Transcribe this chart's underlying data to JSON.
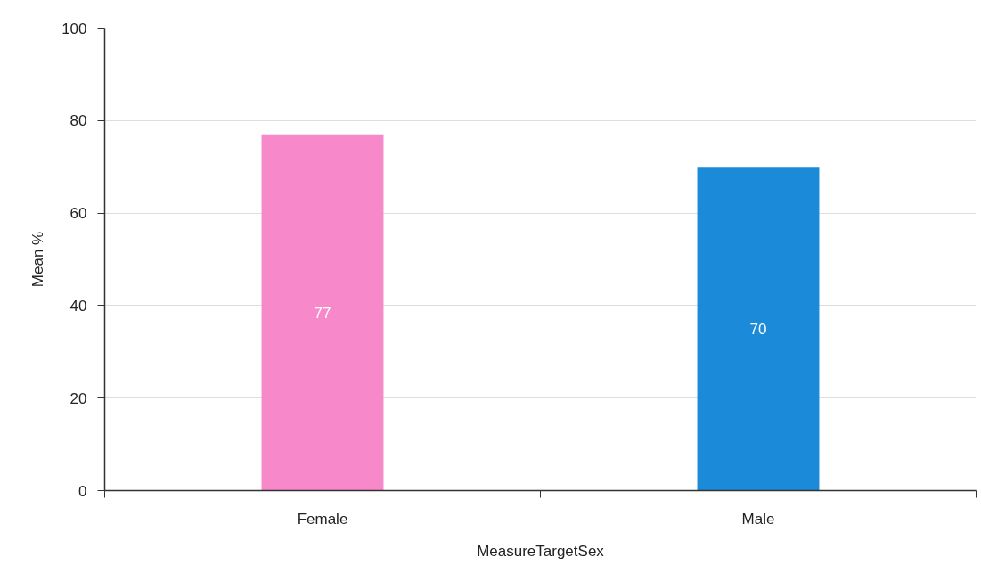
{
  "chart_data": {
    "type": "bar",
    "categories": [
      "Female",
      "Male"
    ],
    "values": [
      77,
      70
    ],
    "colors": [
      "#f788c9",
      "#1a8ad9"
    ],
    "xlabel": "MeasureTargetSex",
    "ylabel": "Mean %",
    "ylim": [
      0,
      100
    ],
    "yticks": [
      0,
      20,
      40,
      60,
      80,
      100
    ],
    "grid": "y",
    "data_labels": true
  }
}
